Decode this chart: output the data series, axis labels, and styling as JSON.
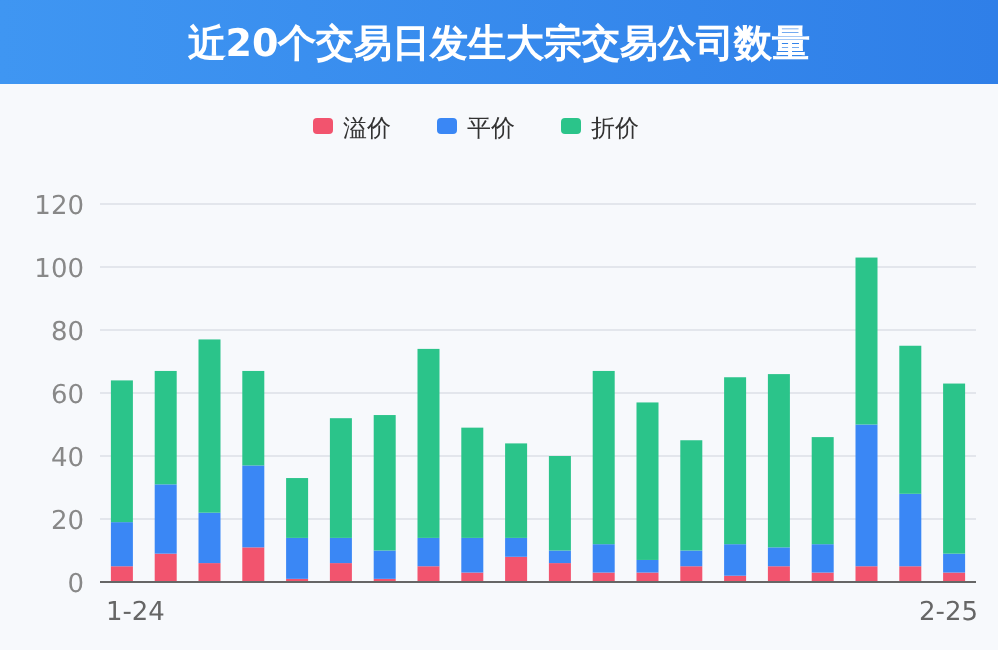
{
  "chart_data": {
    "type": "bar",
    "title": "近20个交易日发生大宗交易公司数量",
    "stacked": true,
    "legend": "top",
    "grid": "y",
    "categories": [
      "1-24",
      null,
      null,
      null,
      null,
      null,
      null,
      null,
      null,
      null,
      null,
      null,
      null,
      null,
      null,
      null,
      null,
      null,
      null,
      "2-25"
    ],
    "series": [
      {
        "name": "溢价",
        "color": "#f2546e",
        "values": [
          5,
          9,
          6,
          11,
          1,
          6,
          1,
          5,
          3,
          8,
          6,
          3,
          3,
          5,
          2,
          5,
          3,
          5,
          5,
          3
        ]
      },
      {
        "name": "平价",
        "color": "#3a87f5",
        "values": [
          14,
          22,
          16,
          26,
          13,
          8,
          9,
          9,
          11,
          6,
          4,
          9,
          4,
          5,
          10,
          6,
          9,
          45,
          23,
          6
        ]
      },
      {
        "name": "折价",
        "color": "#2bc48a",
        "values": [
          45,
          36,
          55,
          30,
          19,
          38,
          43,
          60,
          35,
          30,
          30,
          55,
          50,
          35,
          53,
          55,
          34,
          53,
          47,
          54
        ]
      }
    ],
    "ylim": [
      0,
      120
    ],
    "yticks": [
      0,
      20,
      40,
      60,
      80,
      100,
      120
    ]
  }
}
